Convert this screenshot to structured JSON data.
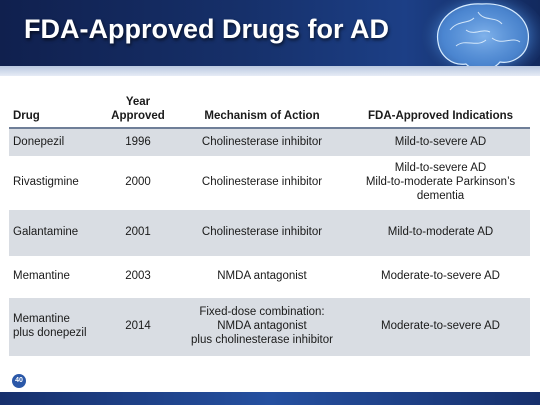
{
  "slide": {
    "title": "FDA-Approved Drugs for AD",
    "page_number": "40",
    "colors": {
      "header_bg": "#16306a",
      "footer_bar": "#2550a0",
      "row_shade": "#d9dde3",
      "badge": "#2b58a8"
    },
    "header_image": "brain-illustration-icon"
  },
  "table": {
    "headers": {
      "drug": "Drug",
      "year": "Year\nApproved",
      "mechanism": "Mechanism of Action",
      "indications": "FDA-Approved Indications"
    },
    "rows": [
      {
        "drug": "Donepezil",
        "year": "1996",
        "mechanism": "Cholinesterase inhibitor",
        "indications": "Mild-to-severe AD"
      },
      {
        "drug": "Rivastigmine",
        "year": "2000",
        "mechanism": "Cholinesterase inhibitor",
        "indications": "Mild-to-severe AD\nMild-to-moderate Parkinson’s\ndementia"
      },
      {
        "drug": "Galantamine",
        "year": "2001",
        "mechanism": "Cholinesterase inhibitor",
        "indications": "Mild-to-moderate AD"
      },
      {
        "drug": "Memantine",
        "year": "2003",
        "mechanism": "NMDA antagonist",
        "indications": "Moderate-to-severe AD"
      },
      {
        "drug": "Memantine\nplus donepezil",
        "year": "2014",
        "mechanism": "Fixed-dose combination:\nNMDA antagonist\nplus cholinesterase inhibitor",
        "indications": "Moderate-to-severe AD"
      }
    ]
  }
}
